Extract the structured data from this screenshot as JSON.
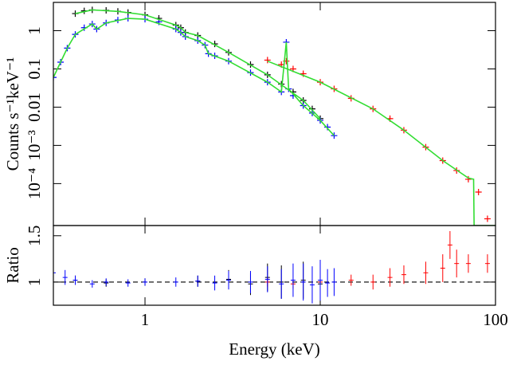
{
  "chart_data": [
    {
      "type": "scatter",
      "xlog": true,
      "ylog": true,
      "ylabel": "Counts s⁻¹keV⁻¹",
      "xlim": [
        0.3,
        100
      ],
      "ylim": [
        8e-06,
        5.5
      ],
      "yticks": [
        {
          "value": 0.0001,
          "label": "10⁻⁴"
        },
        {
          "value": 0.001,
          "label": "10⁻³"
        },
        0.01,
        0.1,
        1
      ],
      "series": [
        {
          "color": "#000000",
          "mode": "points",
          "x": [
            0.4,
            0.45,
            0.5,
            0.6,
            0.7,
            0.8,
            1,
            1.2,
            1.5,
            1.6,
            1.7,
            2,
            2.5,
            3,
            4,
            5,
            6,
            7,
            8,
            9,
            10
          ],
          "values": [
            2.8,
            3.3,
            3.5,
            3.4,
            3.2,
            3.0,
            2.6,
            2.1,
            1.4,
            1.2,
            0.9,
            0.75,
            0.45,
            0.27,
            0.13,
            0.07,
            0.04,
            0.025,
            0.015,
            0.009,
            0.005
          ]
        },
        {
          "color": "#ff0000",
          "mode": "points",
          "x": [
            5,
            6,
            6.4,
            7,
            8,
            10,
            12,
            15,
            20,
            25,
            30,
            40,
            50,
            60,
            70,
            80,
            90
          ],
          "values": [
            0.17,
            0.13,
            0.16,
            0.1,
            0.075,
            0.045,
            0.03,
            0.017,
            0.009,
            0.005,
            0.0025,
            0.0009,
            0.0004,
            0.00022,
            0.00013,
            6e-05,
            1.2e-05
          ]
        },
        {
          "color": "#0000ff",
          "mode": "points",
          "x": [
            0.3,
            0.33,
            0.36,
            0.4,
            0.45,
            0.5,
            0.53,
            0.6,
            0.7,
            0.8,
            1,
            1.2,
            1.5,
            1.6,
            1.7,
            2,
            2.2,
            2.3,
            2.5,
            3,
            4,
            5,
            6,
            6.4,
            6.6,
            7,
            8,
            9,
            10,
            11,
            12
          ],
          "values": [
            0.06,
            0.15,
            0.35,
            0.8,
            1.2,
            1.5,
            1.1,
            1.6,
            1.9,
            2.1,
            2.0,
            1.7,
            1.1,
            0.9,
            0.7,
            0.55,
            0.42,
            0.25,
            0.22,
            0.16,
            0.08,
            0.045,
            0.025,
            0.5,
            0.03,
            0.02,
            0.011,
            0.007,
            0.0045,
            0.003,
            0.0018
          ]
        },
        {
          "color": "#33dd33",
          "mode": "line",
          "x": [
            0.4,
            0.5,
            0.7,
            1,
            1.5,
            1.6,
            1.7,
            2,
            3,
            5,
            8,
            10
          ],
          "values": [
            2.8,
            3.5,
            3.2,
            2.6,
            1.4,
            1.2,
            0.9,
            0.75,
            0.27,
            0.07,
            0.015,
            0.005
          ]
        },
        {
          "color": "#33dd33",
          "mode": "line",
          "x": [
            0.3,
            0.36,
            0.4,
            0.5,
            0.53,
            0.6,
            0.8,
            1,
            1.5,
            1.6,
            1.7,
            2,
            2.2,
            2.3,
            3,
            5,
            6,
            6.4,
            6.6,
            8,
            10,
            12
          ],
          "values": [
            0.06,
            0.35,
            0.8,
            1.5,
            1.1,
            1.6,
            2.1,
            2.0,
            1.1,
            0.9,
            0.7,
            0.55,
            0.42,
            0.25,
            0.16,
            0.045,
            0.025,
            0.5,
            0.03,
            0.011,
            0.0045,
            0.0018
          ]
        },
        {
          "color": "#33dd33",
          "mode": "line",
          "x": [
            5,
            10,
            20,
            30,
            50,
            70,
            75,
            75.5,
            100
          ],
          "values": [
            0.16,
            0.045,
            0.009,
            0.0025,
            0.0004,
            0.00014,
            0.00013,
            8e-06,
            8e-06
          ]
        }
      ]
    },
    {
      "type": "scatter",
      "xlog": true,
      "ylabel": "Ratio",
      "xlabel": "Energy (keV)",
      "xlim": [
        0.3,
        100
      ],
      "ylim": [
        0.75,
        1.61
      ],
      "reference": 1,
      "xticks": [
        1,
        10,
        100
      ],
      "yticks": [
        1,
        1.5
      ],
      "series": [
        {
          "color": "#000000",
          "mode": "errorbars",
          "x": [
            0.4,
            0.6,
            1,
            2,
            3,
            4,
            5,
            6,
            8,
            10
          ],
          "values": [
            1.02,
            0.99,
            1.0,
            1.01,
            1.03,
            0.98,
            1.05,
            1.0,
            1.02,
            0.98
          ],
          "errors": [
            0.05,
            0.04,
            0.04,
            0.06,
            0.1,
            0.12,
            0.15,
            0.18,
            0.2,
            0.2
          ]
        },
        {
          "color": "#ff0000",
          "mode": "errorbars",
          "x": [
            5,
            7,
            10,
            15,
            20,
            25,
            30,
            40,
            50,
            55,
            60,
            70,
            90
          ],
          "values": [
            1.0,
            0.98,
            1.0,
            1.02,
            1.0,
            1.05,
            1.08,
            1.1,
            1.15,
            1.4,
            1.2,
            1.2,
            1.2
          ],
          "errors": [
            0.05,
            0.05,
            0.05,
            0.06,
            0.08,
            0.1,
            0.1,
            0.12,
            0.15,
            0.15,
            0.15,
            0.1,
            0.1
          ]
        },
        {
          "color": "#0000ff",
          "mode": "errorbars",
          "x": [
            0.3,
            0.35,
            0.4,
            0.5,
            0.6,
            0.8,
            1,
            1.5,
            2,
            2.5,
            3,
            4,
            5,
            6,
            7,
            8,
            9,
            10,
            11,
            12
          ],
          "values": [
            1.1,
            1.05,
            1.02,
            0.98,
            1.0,
            0.99,
            1.0,
            1.0,
            1.01,
            0.99,
            1.02,
            1.0,
            1.03,
            0.98,
            1.02,
            1.0,
            0.97,
            1.02,
            0.99,
            1.0
          ],
          "errors": [
            0.15,
            0.08,
            0.05,
            0.04,
            0.04,
            0.04,
            0.04,
            0.05,
            0.06,
            0.08,
            0.1,
            0.12,
            0.14,
            0.16,
            0.18,
            0.2,
            0.2,
            0.22,
            0.15,
            0.15
          ]
        }
      ]
    }
  ]
}
